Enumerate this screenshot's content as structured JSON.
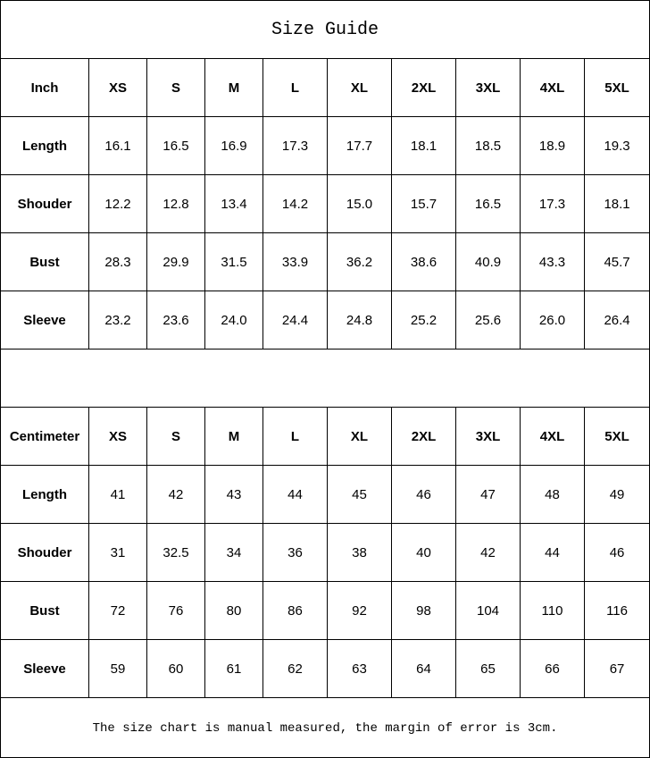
{
  "title": "Size Guide",
  "sizes": [
    "XS",
    "S",
    "M",
    "L",
    "XL",
    "2XL",
    "3XL",
    "4XL",
    "5XL"
  ],
  "inch": {
    "unit_label": "Inch",
    "rows": [
      {
        "label": "Length",
        "values": [
          "16.1",
          "16.5",
          "16.9",
          "17.3",
          "17.7",
          "18.1",
          "18.5",
          "18.9",
          "19.3"
        ]
      },
      {
        "label": "Shouder",
        "values": [
          "12.2",
          "12.8",
          "13.4",
          "14.2",
          "15.0",
          "15.7",
          "16.5",
          "17.3",
          "18.1"
        ]
      },
      {
        "label": "Bust",
        "values": [
          "28.3",
          "29.9",
          "31.5",
          "33.9",
          "36.2",
          "38.6",
          "40.9",
          "43.3",
          "45.7"
        ]
      },
      {
        "label": "Sleeve",
        "values": [
          "23.2",
          "23.6",
          "24.0",
          "24.4",
          "24.8",
          "25.2",
          "25.6",
          "26.0",
          "26.4"
        ]
      }
    ]
  },
  "centimeter": {
    "unit_label": "Centimeter",
    "rows": [
      {
        "label": "Length",
        "values": [
          "41",
          "42",
          "43",
          "44",
          "45",
          "46",
          "47",
          "48",
          "49"
        ]
      },
      {
        "label": "Shouder",
        "values": [
          "31",
          "32.5",
          "34",
          "36",
          "38",
          "40",
          "42",
          "44",
          "46"
        ]
      },
      {
        "label": "Bust",
        "values": [
          "72",
          "76",
          "80",
          "86",
          "92",
          "98",
          "104",
          "110",
          "116"
        ]
      },
      {
        "label": "Sleeve",
        "values": [
          "59",
          "60",
          "61",
          "62",
          "63",
          "64",
          "65",
          "66",
          "67"
        ]
      }
    ]
  },
  "note": "The size chart is manual measured, the margin of error is 3cm."
}
